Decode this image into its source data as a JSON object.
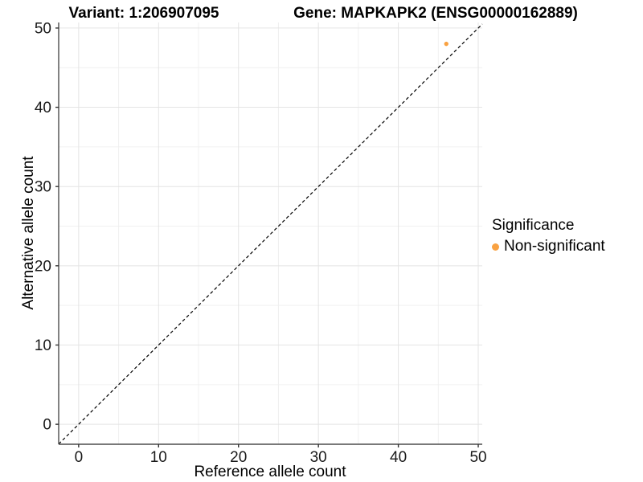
{
  "chart_data": {
    "type": "scatter",
    "title_left": "Variant: 1:206907095",
    "title_right": "Gene: MAPKAPK2 (ENSG00000162889)",
    "xlabel": "Reference allele count",
    "ylabel": "Alternative allele count",
    "xlim": [
      -2.5,
      50.5
    ],
    "ylim": [
      -2.52,
      50.7
    ],
    "xticks": [
      0,
      10,
      20,
      30,
      40,
      50
    ],
    "yticks": [
      0,
      10,
      20,
      30,
      40,
      50
    ],
    "minor_xticks": [
      5,
      15,
      25,
      35,
      45
    ],
    "minor_yticks": [
      5,
      15,
      25,
      35,
      45
    ],
    "grid": "on",
    "points": [
      {
        "x": 46,
        "y": 48,
        "series": "Non-significant"
      }
    ],
    "abline": {
      "slope": 1,
      "intercept": 0,
      "style": "dashed"
    },
    "legend": {
      "title": "Significance",
      "position": "right",
      "items": [
        {
          "label": "Non-significant",
          "color": "#F9A242"
        }
      ]
    },
    "colors": {
      "point": "#F9A242",
      "grid_major": "#E4E4E4",
      "grid_minor": "#F0F0F0",
      "axis_line": "#4D4D4D",
      "tick_mark": "#333333",
      "tick_label": "#1A1A1A",
      "abline": "#000000",
      "background": "#FFFFFF"
    }
  }
}
